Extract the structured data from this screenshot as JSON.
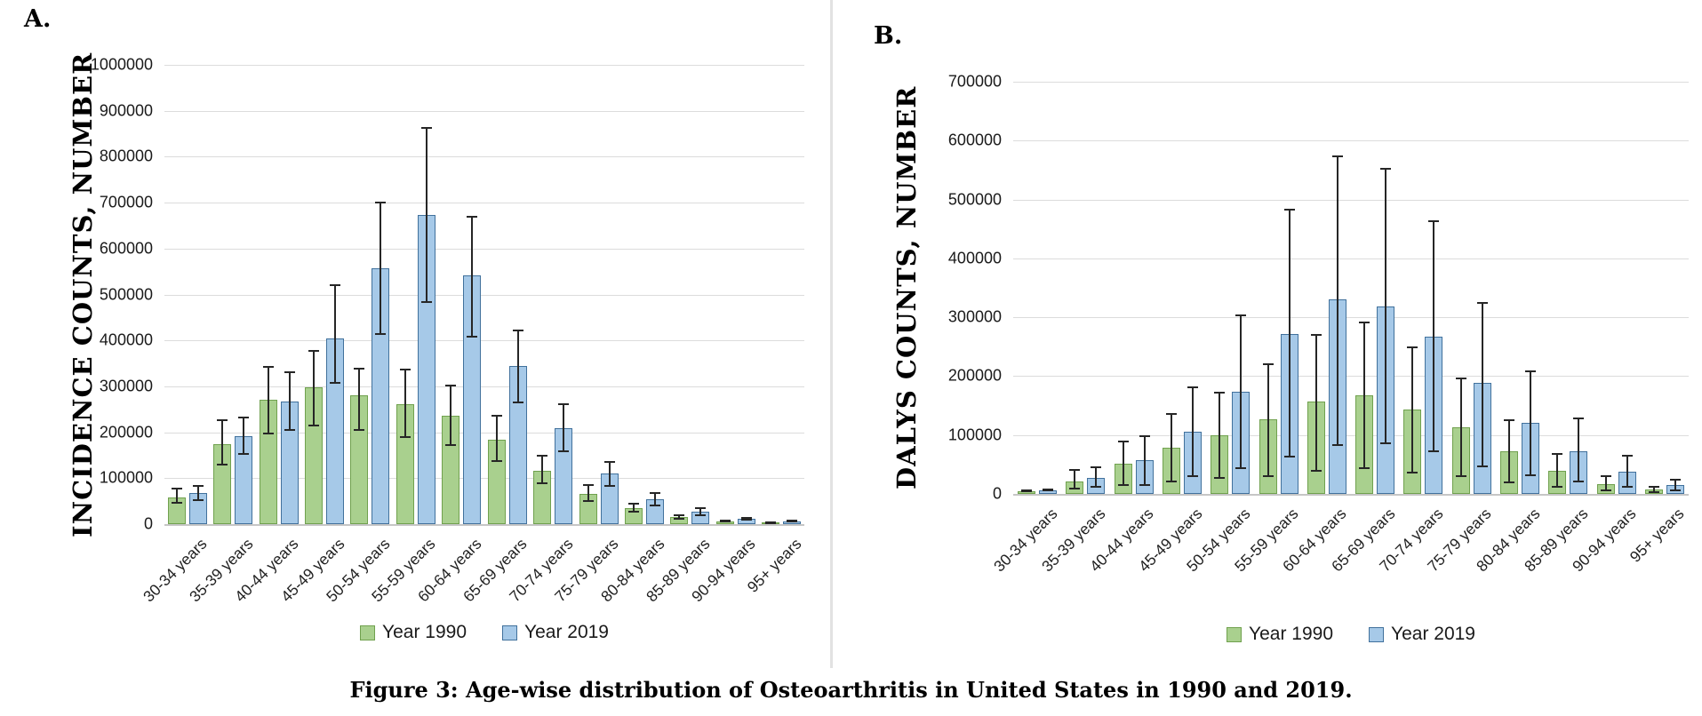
{
  "figure": {
    "caption": "Figure 3: Age-wise distribution of Osteoarthritis in United States in 1990 and 2019.",
    "panels": [
      {
        "label": "A."
      },
      {
        "label": "B."
      }
    ]
  },
  "colors": {
    "green_fill": "#a9d08e",
    "green_border": "#70a14e",
    "blue_fill": "#a6c9e8",
    "blue_border": "#41719c",
    "gridline": "#dcdcdc",
    "error_bar": "#262626",
    "divider": "#e2e2e2"
  },
  "chart_data": [
    {
      "type": "bar",
      "title": "A. Incidence counts by age group, US, 1990 vs 2019",
      "xlabel": "",
      "ylabel": "INCIDENCE COUNTS, NUMBER",
      "ylim": [
        0,
        1000000
      ],
      "ytick_step": 100000,
      "grid": true,
      "legend_position": "bottom",
      "error_bars": true,
      "categories": [
        "30-34 years",
        "35-39 years",
        "40-44 years",
        "45-49 years",
        "50-54 years",
        "55-59 years",
        "60-64 years",
        "65-69 years",
        "70-74 years",
        "75-79 years",
        "80-84 years",
        "85-89 years",
        "90-94 years",
        "95+ years"
      ],
      "series": [
        {
          "name": "Year 1990",
          "color": "#a9d08e",
          "border": "#70a14e",
          "values": [
            58000,
            174000,
            270000,
            297000,
            280000,
            262000,
            236000,
            183000,
            117000,
            66000,
            35000,
            15000,
            6000,
            2500
          ],
          "err_low": [
            44000,
            127000,
            196000,
            213000,
            204000,
            188000,
            171000,
            136000,
            87000,
            48000,
            25000,
            10000,
            4000,
            1500
          ],
          "err_high": [
            80000,
            229000,
            344000,
            379000,
            341000,
            339000,
            303000,
            238000,
            151000,
            87000,
            47000,
            21000,
            9000,
            4000
          ]
        },
        {
          "name": "Year 2019",
          "color": "#a6c9e8",
          "border": "#41719c",
          "values": [
            68000,
            192000,
            266000,
            405000,
            557000,
            673000,
            541000,
            344000,
            209000,
            110000,
            54000,
            27000,
            12000,
            6000
          ],
          "err_low": [
            51000,
            151000,
            203000,
            306000,
            412000,
            482000,
            407000,
            263000,
            157000,
            81000,
            39000,
            18000,
            8000,
            4000
          ],
          "err_high": [
            86000,
            234000,
            332000,
            523000,
            703000,
            864000,
            672000,
            424000,
            264000,
            138000,
            70000,
            37000,
            16000,
            9000
          ]
        }
      ]
    },
    {
      "type": "bar",
      "title": "B. DALYs counts by age group, US, 1990 vs 2019",
      "xlabel": "",
      "ylabel": "DALYS COUNTS, NUMBER",
      "ylim": [
        0,
        700000
      ],
      "ytick_step": 100000,
      "grid": true,
      "legend_position": "bottom",
      "error_bars": true,
      "categories": [
        "30-34 years",
        "35-39 years",
        "40-44 years",
        "45-49 years",
        "50-54 years",
        "55-59 years",
        "60-64 years",
        "65-69 years",
        "70-74 years",
        "75-79 years",
        "80-84 years",
        "85-89 years",
        "90-94 years",
        "95+ years"
      ],
      "series": [
        {
          "name": "Year 1990",
          "color": "#a9d08e",
          "border": "#70a14e",
          "values": [
            5000,
            21000,
            52000,
            78000,
            100000,
            127000,
            157000,
            167000,
            143000,
            113000,
            73000,
            40000,
            17000,
            7000
          ],
          "err_low": [
            3000,
            8000,
            13000,
            20000,
            26000,
            29000,
            38000,
            42000,
            34000,
            28000,
            18000,
            10000,
            5000,
            2000
          ],
          "err_high": [
            8000,
            42000,
            90000,
            137000,
            174000,
            222000,
            272000,
            292000,
            250000,
            197000,
            127000,
            70000,
            32000,
            13000
          ]
        },
        {
          "name": "Year 2019",
          "color": "#a6c9e8",
          "border": "#41719c",
          "values": [
            6000,
            27000,
            58000,
            105000,
            174000,
            272000,
            330000,
            318000,
            267000,
            188000,
            121000,
            73000,
            37000,
            15000
          ],
          "err_low": [
            4000,
            10000,
            14000,
            29000,
            43000,
            62000,
            82000,
            84000,
            71000,
            46000,
            30000,
            20000,
            10000,
            5000
          ],
          "err_high": [
            9000,
            47000,
            99000,
            183000,
            305000,
            485000,
            575000,
            553000,
            465000,
            326000,
            209000,
            130000,
            67000,
            25000
          ]
        }
      ]
    }
  ]
}
